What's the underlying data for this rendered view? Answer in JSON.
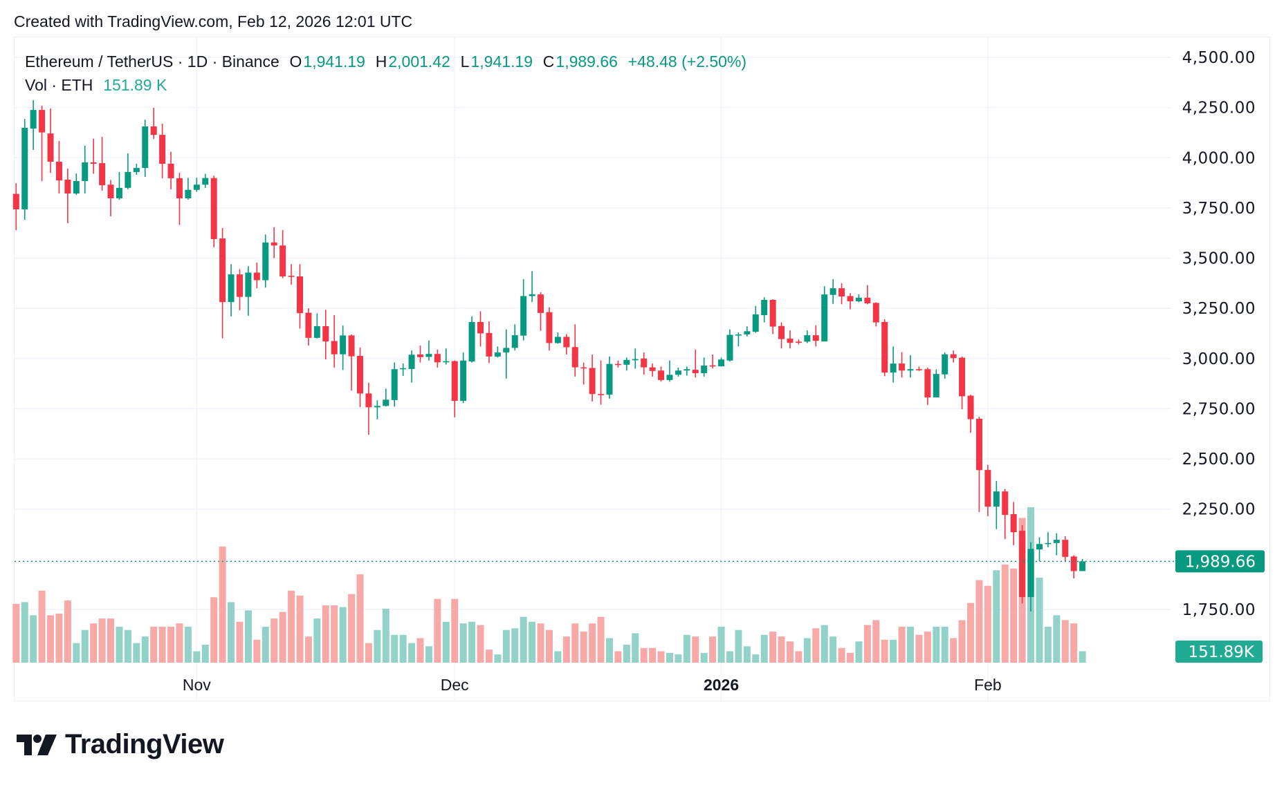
{
  "credit": "Created with TradingView.com, Feb 12, 2026 12:01 UTC",
  "legend": {
    "symbol": "Ethereum / TetherUS · 1D · Binance",
    "o_label": "O",
    "o": "1,941.19",
    "h_label": "H",
    "h": "2,001.42",
    "l_label": "L",
    "l": "1,941.19",
    "c_label": "C",
    "c": "1,989.66",
    "change": "+48.48 (+2.50%)",
    "vol_label": "Vol · ETH",
    "vol": "151.89 K"
  },
  "logo": {
    "text": "TradingView"
  },
  "colors": {
    "up": "#089981",
    "down": "#f23645",
    "vol_up": "#92d2c8",
    "vol_down": "#f7a9a7",
    "grid": "#f0f3fa",
    "last_price": "#089981",
    "last_vol": "#22ab94"
  },
  "chart_data": {
    "type": "candlestick",
    "title": "",
    "interval": "1D",
    "first_date": "2025-10-11",
    "last_date": "2026-02-12",
    "ylim": [
      1700,
      4500
    ],
    "y_ticks": [
      "4,500.00",
      "4,250.00",
      "4,000.00",
      "3,750.00",
      "3,500.00",
      "3,250.00",
      "3,000.00",
      "2,750.00",
      "2,500.00",
      "2,250.00",
      "1,750.00"
    ],
    "y_tick_values": [
      4500,
      4250,
      4000,
      3750,
      3500,
      3250,
      3000,
      2750,
      2500,
      2250,
      1750
    ],
    "x_ticks": [
      {
        "label": "Nov",
        "index": 21,
        "bold": false
      },
      {
        "label": "Dec",
        "index": 51,
        "bold": false
      },
      {
        "label": "2026",
        "index": 82,
        "bold": true
      },
      {
        "label": "Feb",
        "index": 113,
        "bold": false
      }
    ],
    "grid": true,
    "last_price": 1989.66,
    "last_price_label": "1,989.66",
    "last_volume_label": "151.89K",
    "volume_unit": "K ETH",
    "ohlc": [
      [
        3820,
        3873,
        3639,
        3743
      ],
      [
        3743,
        4193,
        3691,
        4149
      ],
      [
        4145,
        4287,
        4039,
        4238
      ],
      [
        4238,
        4259,
        3884,
        4126
      ],
      [
        4121,
        4245,
        3925,
        3980
      ],
      [
        3980,
        4083,
        3822,
        3887
      ],
      [
        3891,
        3946,
        3674,
        3822
      ],
      [
        3822,
        3921,
        3815,
        3884
      ],
      [
        3884,
        4060,
        3822,
        3977
      ],
      [
        3977,
        4095,
        3920,
        3970
      ],
      [
        3973,
        4104,
        3836,
        3863
      ],
      [
        3866,
        3889,
        3708,
        3798
      ],
      [
        3798,
        3929,
        3791,
        3850
      ],
      [
        3850,
        4022,
        3843,
        3929
      ],
      [
        3929,
        3970,
        3915,
        3949
      ],
      [
        3949,
        4190,
        3905,
        4156
      ],
      [
        4156,
        4249,
        4094,
        4114
      ],
      [
        4114,
        4170,
        3897,
        3970
      ],
      [
        3970,
        4030,
        3843,
        3898
      ],
      [
        3898,
        3925,
        3665,
        3798
      ],
      [
        3798,
        3900,
        3791,
        3840
      ],
      [
        3840,
        3900,
        3830,
        3866
      ],
      [
        3866,
        3920,
        3850,
        3899
      ],
      [
        3899,
        3910,
        3554,
        3595
      ],
      [
        3598,
        3650,
        3100,
        3281
      ],
      [
        3281,
        3470,
        3210,
        3419
      ],
      [
        3419,
        3445,
        3240,
        3307
      ],
      [
        3307,
        3460,
        3213,
        3428
      ],
      [
        3428,
        3478,
        3350,
        3390
      ],
      [
        3390,
        3618,
        3353,
        3578
      ],
      [
        3578,
        3654,
        3500,
        3563
      ],
      [
        3563,
        3640,
        3400,
        3409
      ],
      [
        3412,
        3470,
        3368,
        3410
      ],
      [
        3409,
        3470,
        3149,
        3226
      ],
      [
        3228,
        3250,
        3064,
        3103
      ],
      [
        3103,
        3225,
        3100,
        3161
      ],
      [
        3161,
        3243,
        2996,
        3085
      ],
      [
        3087,
        3216,
        2954,
        3021
      ],
      [
        3021,
        3164,
        2943,
        3115
      ],
      [
        3115,
        3120,
        2840,
        3011
      ],
      [
        3013,
        3055,
        2758,
        2826
      ],
      [
        2826,
        2879,
        2620,
        2757
      ],
      [
        2757,
        2792,
        2697,
        2764
      ],
      [
        2764,
        2850,
        2761,
        2795
      ],
      [
        2793,
        2980,
        2760,
        2947
      ],
      [
        2947,
        2975,
        2913,
        2952
      ],
      [
        2948,
        3040,
        2880,
        3019
      ],
      [
        3020,
        3065,
        2980,
        3007
      ],
      [
        3008,
        3090,
        2990,
        3023
      ],
      [
        3023,
        3045,
        2955,
        2981
      ],
      [
        2981,
        3050,
        2970,
        2987
      ],
      [
        2987,
        2990,
        2707,
        2789
      ],
      [
        2789,
        3030,
        2778,
        2990
      ],
      [
        2985,
        3210,
        2980,
        3182
      ],
      [
        3182,
        3235,
        3060,
        3125
      ],
      [
        3127,
        3185,
        2977,
        3010
      ],
      [
        3010,
        3060,
        3005,
        3030
      ],
      [
        3030,
        3145,
        2900,
        3053
      ],
      [
        3053,
        3170,
        3040,
        3116
      ],
      [
        3114,
        3395,
        3090,
        3311
      ],
      [
        3311,
        3435,
        3281,
        3320
      ],
      [
        3319,
        3330,
        3138,
        3227
      ],
      [
        3231,
        3255,
        3040,
        3077
      ],
      [
        3077,
        3130,
        3075,
        3108
      ],
      [
        3108,
        3122,
        3020,
        3056
      ],
      [
        3057,
        3170,
        2910,
        2956
      ],
      [
        2956,
        2980,
        2870,
        2955
      ],
      [
        2953,
        3020,
        2786,
        2823
      ],
      [
        2823,
        2990,
        2770,
        2820
      ],
      [
        2820,
        3010,
        2800,
        2973
      ],
      [
        2973,
        2990,
        2955,
        2968
      ],
      [
        2969,
        3005,
        2940,
        2993
      ],
      [
        2993,
        3050,
        2950,
        2997
      ],
      [
        3000,
        3030,
        2920,
        2956
      ],
      [
        2956,
        2975,
        2910,
        2938
      ],
      [
        2940,
        2960,
        2885,
        2893
      ],
      [
        2893,
        2990,
        2885,
        2919
      ],
      [
        2919,
        2955,
        2910,
        2940
      ],
      [
        2940,
        2960,
        2915,
        2947
      ],
      [
        2944,
        3045,
        2905,
        2927
      ],
      [
        2927,
        3005,
        2910,
        2965
      ],
      [
        2966,
        3020,
        2950,
        2962
      ],
      [
        2961,
        3005,
        2960,
        2995
      ],
      [
        2990,
        3145,
        2985,
        3118
      ],
      [
        3118,
        3130,
        3060,
        3120
      ],
      [
        3120,
        3160,
        3110,
        3136
      ],
      [
        3133,
        3262,
        3128,
        3220
      ],
      [
        3216,
        3305,
        3180,
        3292
      ],
      [
        3292,
        3295,
        3122,
        3159
      ],
      [
        3162,
        3180,
        3050,
        3097
      ],
      [
        3099,
        3140,
        3050,
        3078
      ],
      [
        3084,
        3095,
        3070,
        3082
      ],
      [
        3084,
        3140,
        3077,
        3116
      ],
      [
        3116,
        3165,
        3060,
        3088
      ],
      [
        3085,
        3360,
        3085,
        3319
      ],
      [
        3317,
        3395,
        3272,
        3350
      ],
      [
        3350,
        3375,
        3270,
        3309
      ],
      [
        3311,
        3325,
        3245,
        3285
      ],
      [
        3285,
        3320,
        3280,
        3303
      ],
      [
        3303,
        3365,
        3270,
        3275
      ],
      [
        3277,
        3280,
        3160,
        3180
      ],
      [
        3182,
        3195,
        2912,
        2930
      ],
      [
        2930,
        3060,
        2880,
        2975
      ],
      [
        2975,
        3032,
        2905,
        2940
      ],
      [
        2940,
        3017,
        2905,
        2947
      ],
      [
        2947,
        2960,
        2938,
        2945
      ],
      [
        2947,
        2955,
        2768,
        2806
      ],
      [
        2806,
        2945,
        2806,
        2923
      ],
      [
        2921,
        3030,
        2900,
        3021
      ],
      [
        3021,
        3040,
        2980,
        3002
      ],
      [
        3004,
        3010,
        2747,
        2812
      ],
      [
        2815,
        2820,
        2630,
        2698
      ],
      [
        2700,
        2710,
        2235,
        2444
      ],
      [
        2445,
        2470,
        2215,
        2262
      ],
      [
        2262,
        2390,
        2150,
        2338
      ],
      [
        2338,
        2350,
        2100,
        2221
      ],
      [
        2225,
        2285,
        2070,
        2135
      ],
      [
        2142,
        2170,
        1780,
        1812
      ],
      [
        1812,
        2085,
        1740,
        2052
      ],
      [
        2049,
        2110,
        1990,
        2076
      ],
      [
        2076,
        2135,
        2060,
        2081
      ],
      [
        2081,
        2130,
        2020,
        2097
      ],
      [
        2097,
        2115,
        1990,
        2012
      ],
      [
        2014,
        2020,
        1905,
        1941.19
      ],
      [
        1941.19,
        2001.42,
        1941.19,
        1989.66
      ]
    ],
    "volume": [
      781,
      803,
      629,
      955,
      629,
      651,
      825,
      260,
      434,
      521,
      586,
      586,
      477,
      434,
      260,
      347,
      477,
      477,
      477,
      521,
      477,
      152,
      239,
      868,
      1541,
      803,
      543,
      694,
      304,
      477,
      586,
      673,
      955,
      890,
      347,
      586,
      760,
      760,
      738,
      911,
      1172,
      260,
      434,
      716,
      369,
      369,
      260,
      326,
      217,
      846,
      543,
      846,
      521,
      543,
      499,
      174,
      109,
      434,
      456,
      608,
      543,
      521,
      434,
      152,
      347,
      521,
      412,
      521,
      608,
      326,
      152,
      239,
      391,
      195,
      195,
      152,
      130,
      109,
      369,
      347,
      130,
      347,
      477,
      152,
      434,
      217,
      109,
      369,
      412,
      347,
      282,
      152,
      326,
      456,
      499,
      347,
      195,
      130,
      282,
      499,
      564,
      304,
      304,
      477,
      477,
      369,
      412,
      477,
      477,
      326,
      564,
      792,
      1096,
      1020,
      1226,
      1302,
      1248,
      1920,
      2062,
      1128,
      477,
      629,
      564,
      521,
      151.89
    ]
  }
}
